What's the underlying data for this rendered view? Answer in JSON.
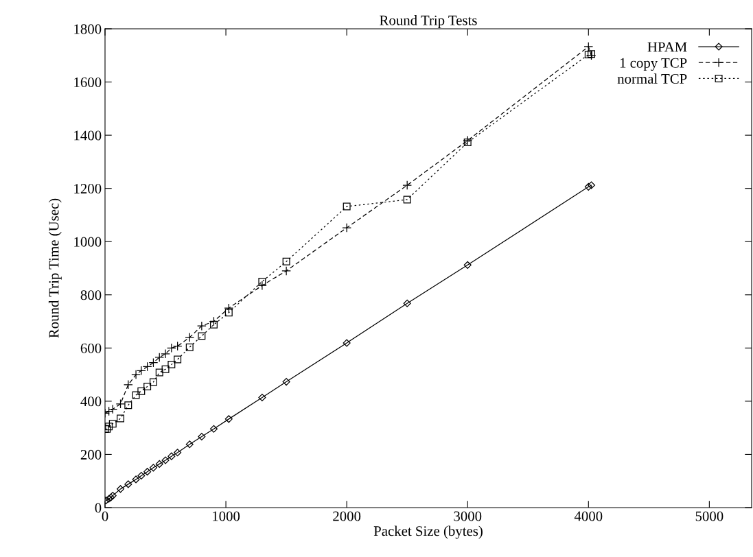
{
  "chart_data": {
    "type": "line",
    "title": "Round Trip Tests",
    "xlabel": "Packet Size (bytes)",
    "ylabel": "Round Trip Time (Usec)",
    "xlim": [
      0,
      5350
    ],
    "xticks": [
      0,
      1000,
      2000,
      3000,
      4000,
      5000
    ],
    "ylim": [
      0,
      1800
    ],
    "yticks": [
      0,
      200,
      400,
      600,
      800,
      1000,
      1200,
      1400,
      1600,
      1800
    ],
    "grid": false,
    "legend": "top right",
    "color": "#000000",
    "series": [
      {
        "name": "HPAM",
        "marker": "diamond",
        "line_style": "solid",
        "x": [
          8,
          32,
          48,
          64,
          128,
          192,
          256,
          300,
          350,
          400,
          450,
          500,
          550,
          600,
          700,
          800,
          900,
          1024,
          1300,
          1500,
          2000,
          2500,
          3000,
          4000,
          4024
        ],
        "values": [
          27,
          33,
          38,
          45,
          70,
          88,
          106,
          120,
          135,
          150,
          164,
          178,
          193,
          207,
          238,
          267,
          296,
          333,
          414,
          473,
          619,
          768,
          912,
          1206,
          1212
        ]
      },
      {
        "name": "1 copy TCP",
        "marker": "cross",
        "line_style": "dashed",
        "x": [
          0,
          32,
          64,
          128,
          192,
          256,
          300,
          350,
          400,
          450,
          500,
          550,
          600,
          700,
          800,
          900,
          1024,
          1300,
          1500,
          2000,
          2500,
          3000,
          4000,
          4024
        ],
        "values": [
          355,
          362,
          370,
          390,
          462,
          500,
          515,
          530,
          545,
          565,
          578,
          600,
          607,
          640,
          683,
          700,
          750,
          835,
          890,
          1052,
          1212,
          1380,
          1733,
          1700
        ]
      },
      {
        "name": "normal TCP",
        "marker": "square",
        "line_style": "dotted",
        "x": [
          0,
          16,
          32,
          64,
          128,
          192,
          256,
          300,
          350,
          400,
          450,
          500,
          550,
          600,
          700,
          800,
          900,
          1024,
          1300,
          1500,
          2000,
          2500,
          3000,
          4000,
          4024
        ],
        "values": [
          295,
          296,
          305,
          315,
          335,
          385,
          423,
          438,
          455,
          472,
          508,
          520,
          538,
          557,
          603,
          645,
          688,
          733,
          850,
          925,
          1132,
          1158,
          1373,
          1703,
          1705
        ]
      }
    ]
  }
}
